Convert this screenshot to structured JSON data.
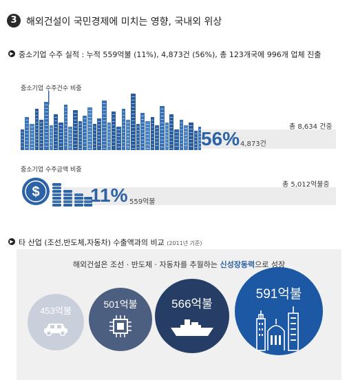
{
  "section": {
    "number": "3",
    "title": "해외건설이 국민경제에 미치는 영향, 국내외 위상"
  },
  "sme": {
    "headline": "중소기업 수주 실적 : 누적 559억불 (11%), 4,873건 (56%), 총 123개국에 996개 업체 진출",
    "count_block": {
      "label": "중소기업 수주건수 비중",
      "percent_text": "56%",
      "value_text": "4,873건",
      "total_text": "총 8,634 건중",
      "share": 0.56
    },
    "amount_block": {
      "label": "중소기업 수주금액 비중",
      "percent_text": "11%",
      "value_text": "559억불",
      "total_text": "총 5,012억불중",
      "share": 0.11
    }
  },
  "compare": {
    "headline": "타 산업 (조선,반도체,자동차) 수출액과의 비교",
    "note": "(2011년 기준)",
    "caption_pre": "해외건설은 조선 · 반도체 · 자동차를 추월하는",
    "caption_highlight": "신성장동력",
    "caption_post": "으로 성장",
    "items": [
      {
        "value_text": "453억불",
        "icon": "car-icon",
        "color": "#c9d0dc"
      },
      {
        "value_text": "501억불",
        "icon": "chip-icon",
        "color": "#4d5f80"
      },
      {
        "value_text": "566억불",
        "icon": "ship-icon",
        "color": "#263e66"
      },
      {
        "value_text": "591억불",
        "icon": "buildings-icon",
        "color": "#1c58a3"
      }
    ]
  },
  "colors": {
    "accent": "#2d63a6",
    "bar_bg": "#ececec",
    "panel_bg": "#f0f0f0"
  }
}
